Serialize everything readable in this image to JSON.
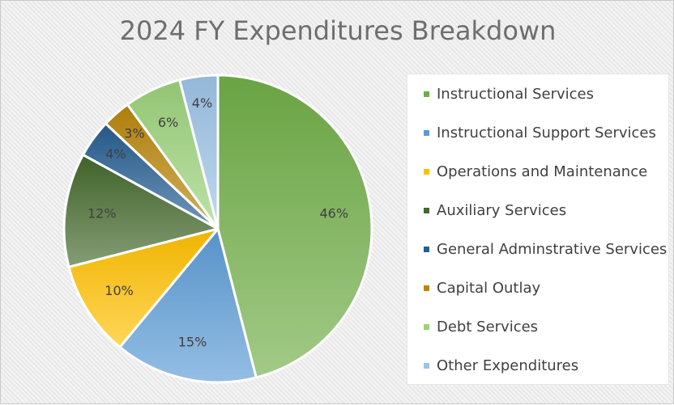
{
  "chart_data": {
    "type": "pie",
    "title": "2024 FY Expenditures Breakdown",
    "legend_position": "right",
    "slices": [
      {
        "label": "Instructional Services",
        "value": 46,
        "display": "46%",
        "color": "#70ad47"
      },
      {
        "label": "Instructional Support Services",
        "value": 15,
        "display": "15%",
        "color": "#5b9bd5"
      },
      {
        "label": "Operations and Maintenance",
        "value": 10,
        "display": "10%",
        "color": "#ffc000"
      },
      {
        "label": "Auxiliary Services",
        "value": 12,
        "display": "12%",
        "color": "#43682b"
      },
      {
        "label": "General Adminstrative Services",
        "value": 4,
        "display": "4%",
        "color": "#255e91"
      },
      {
        "label": "Capital Outlay",
        "value": 3,
        "display": "3%",
        "color": "#b8860b"
      },
      {
        "label": "Debt Services",
        "value": 6,
        "display": "6%",
        "color": "#9bd27a"
      },
      {
        "label": "Other Expenditures",
        "value": 4,
        "display": "4%",
        "color": "#9dc3e6"
      }
    ]
  }
}
